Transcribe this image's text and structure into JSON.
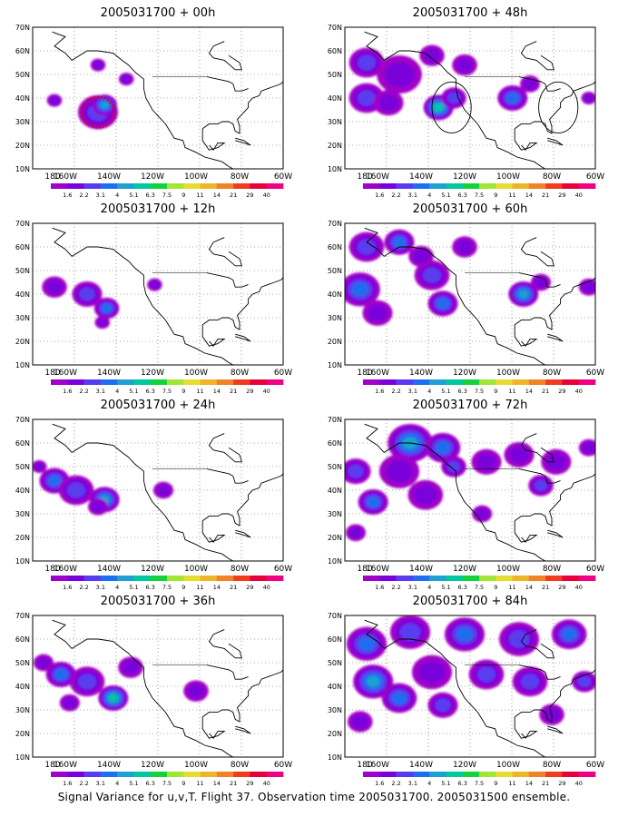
{
  "figure": {
    "caption": "Signal Variance for u,v,T. Flight 37. Observation time 2005031700. 2005031500 ensemble."
  },
  "axes": {
    "lat_ticks": [
      "70N",
      "60N",
      "50N",
      "40N",
      "30N",
      "20N",
      "10N"
    ],
    "lon_ticks": [
      "180",
      "160W",
      "140W",
      "120W",
      "100W",
      "80W",
      "60W"
    ],
    "lat_range": [
      10,
      70
    ],
    "lon_range": [
      -175,
      -60
    ]
  },
  "colorbar": {
    "labels": [
      "1.6",
      "2.2",
      "3.1",
      "4",
      "5.1",
      "6.3",
      "7.5",
      "9",
      "11",
      "14",
      "21",
      "29",
      "40"
    ],
    "colors": [
      "#a000c8",
      "#7a00dc",
      "#5a3cf0",
      "#1e6ef0",
      "#1ea0d2",
      "#00c8a0",
      "#14d23c",
      "#a0e632",
      "#e6dc32",
      "#f0b428",
      "#f08228",
      "#f03c1e",
      "#e6003c",
      "#f00082"
    ]
  },
  "panels": [
    {
      "title": "2005031700 + 00h",
      "blobs": [
        {
          "lon": -145,
          "lat": 34,
          "r": 8,
          "level": 2
        },
        {
          "lon": -142,
          "lat": 37,
          "r": 5,
          "level": 4
        },
        {
          "lon": -165,
          "lat": 39,
          "r": 3,
          "level": 1
        },
        {
          "lon": -145,
          "lat": 54,
          "r": 3,
          "level": 1
        },
        {
          "lon": -132,
          "lat": 48,
          "r": 3,
          "level": 1
        }
      ],
      "circles": [],
      "flight_box": {
        "lon": -145,
        "lat": 34,
        "r": 6
      }
    },
    {
      "title": "2005031700 + 12h",
      "blobs": [
        {
          "lon": -165,
          "lat": 43,
          "r": 5,
          "level": 1
        },
        {
          "lon": -150,
          "lat": 40,
          "r": 6,
          "level": 2
        },
        {
          "lon": -141,
          "lat": 34,
          "r": 5,
          "level": 3
        },
        {
          "lon": -143,
          "lat": 28,
          "r": 3,
          "level": 1
        },
        {
          "lon": -119,
          "lat": 44,
          "r": 3,
          "level": 1
        }
      ],
      "circles": []
    },
    {
      "title": "2005031700 + 24h",
      "blobs": [
        {
          "lon": -165,
          "lat": 44,
          "r": 6,
          "level": 3
        },
        {
          "lon": -155,
          "lat": 40,
          "r": 7,
          "level": 2
        },
        {
          "lon": -142,
          "lat": 36,
          "r": 6,
          "level": 4
        },
        {
          "lon": -145,
          "lat": 33,
          "r": 4,
          "level": 1
        },
        {
          "lon": -115,
          "lat": 40,
          "r": 4,
          "level": 1
        },
        {
          "lon": -172,
          "lat": 50,
          "r": 3,
          "level": 1
        }
      ],
      "circles": []
    },
    {
      "title": "2005031700 + 36h",
      "blobs": [
        {
          "lon": -170,
          "lat": 50,
          "r": 4,
          "level": 1
        },
        {
          "lon": -162,
          "lat": 45,
          "r": 6,
          "level": 3
        },
        {
          "lon": -150,
          "lat": 42,
          "r": 7,
          "level": 2
        },
        {
          "lon": -138,
          "lat": 35,
          "r": 6,
          "level": 5
        },
        {
          "lon": -130,
          "lat": 48,
          "r": 5,
          "level": 1
        },
        {
          "lon": -158,
          "lat": 33,
          "r": 4,
          "level": 1
        },
        {
          "lon": -100,
          "lat": 38,
          "r": 5,
          "level": 1
        }
      ],
      "circles": []
    },
    {
      "title": "2005031700 + 48h",
      "blobs": [
        {
          "lon": -165,
          "lat": 55,
          "r": 7,
          "level": 2
        },
        {
          "lon": -150,
          "lat": 50,
          "r": 9,
          "level": 1
        },
        {
          "lon": -165,
          "lat": 40,
          "r": 7,
          "level": 2
        },
        {
          "lon": -155,
          "lat": 38,
          "r": 6,
          "level": 1
        },
        {
          "lon": -132,
          "lat": 36,
          "r": 6,
          "level": 5
        },
        {
          "lon": -125,
          "lat": 40,
          "r": 5,
          "level": 2
        },
        {
          "lon": -120,
          "lat": 54,
          "r": 5,
          "level": 1
        },
        {
          "lon": -135,
          "lat": 58,
          "r": 5,
          "level": 1
        },
        {
          "lon": -98,
          "lat": 40,
          "r": 6,
          "level": 3
        },
        {
          "lon": -90,
          "lat": 46,
          "r": 4,
          "level": 1
        },
        {
          "lon": -63,
          "lat": 40,
          "r": 3,
          "level": 1
        }
      ],
      "circles": [
        {
          "lon": -126,
          "lat": 36,
          "r": 9
        },
        {
          "lon": -77,
          "lat": 36,
          "r": 9
        }
      ]
    },
    {
      "title": "2005031700 + 60h",
      "blobs": [
        {
          "lon": -165,
          "lat": 60,
          "r": 7,
          "level": 2
        },
        {
          "lon": -150,
          "lat": 62,
          "r": 6,
          "level": 3
        },
        {
          "lon": -168,
          "lat": 42,
          "r": 8,
          "level": 3
        },
        {
          "lon": -160,
          "lat": 32,
          "r": 6,
          "level": 1
        },
        {
          "lon": -135,
          "lat": 48,
          "r": 7,
          "level": 2
        },
        {
          "lon": -130,
          "lat": 36,
          "r": 6,
          "level": 3
        },
        {
          "lon": -140,
          "lat": 56,
          "r": 5,
          "level": 1
        },
        {
          "lon": -120,
          "lat": 60,
          "r": 5,
          "level": 1
        },
        {
          "lon": -93,
          "lat": 40,
          "r": 6,
          "level": 4
        },
        {
          "lon": -85,
          "lat": 45,
          "r": 4,
          "level": 1
        },
        {
          "lon": -63,
          "lat": 43,
          "r": 4,
          "level": 1
        }
      ],
      "circles": []
    },
    {
      "title": "2005031700 + 72h",
      "blobs": [
        {
          "lon": -170,
          "lat": 48,
          "r": 6,
          "level": 2
        },
        {
          "lon": -145,
          "lat": 60,
          "r": 9,
          "level": 4
        },
        {
          "lon": -130,
          "lat": 58,
          "r": 7,
          "level": 3
        },
        {
          "lon": -150,
          "lat": 48,
          "r": 8,
          "level": 1
        },
        {
          "lon": -125,
          "lat": 50,
          "r": 5,
          "level": 2
        },
        {
          "lon": -162,
          "lat": 35,
          "r": 6,
          "level": 3
        },
        {
          "lon": -170,
          "lat": 22,
          "r": 4,
          "level": 1
        },
        {
          "lon": -138,
          "lat": 38,
          "r": 7,
          "level": 1
        },
        {
          "lon": -110,
          "lat": 52,
          "r": 6,
          "level": 1
        },
        {
          "lon": -95,
          "lat": 55,
          "r": 6,
          "level": 1
        },
        {
          "lon": -78,
          "lat": 52,
          "r": 6,
          "level": 1
        },
        {
          "lon": -63,
          "lat": 58,
          "r": 4,
          "level": 1
        },
        {
          "lon": -85,
          "lat": 42,
          "r": 5,
          "level": 2
        },
        {
          "lon": -112,
          "lat": 30,
          "r": 4,
          "level": 1
        }
      ],
      "circles": []
    },
    {
      "title": "2005031700 + 84h",
      "blobs": [
        {
          "lon": -165,
          "lat": 58,
          "r": 8,
          "level": 3
        },
        {
          "lon": -145,
          "lat": 63,
          "r": 8,
          "level": 2
        },
        {
          "lon": -120,
          "lat": 62,
          "r": 8,
          "level": 3
        },
        {
          "lon": -95,
          "lat": 60,
          "r": 8,
          "level": 2
        },
        {
          "lon": -72,
          "lat": 62,
          "r": 7,
          "level": 3
        },
        {
          "lon": -162,
          "lat": 42,
          "r": 8,
          "level": 4
        },
        {
          "lon": -150,
          "lat": 35,
          "r": 7,
          "level": 3
        },
        {
          "lon": -135,
          "lat": 46,
          "r": 8,
          "level": 1
        },
        {
          "lon": -130,
          "lat": 32,
          "r": 6,
          "level": 2
        },
        {
          "lon": -110,
          "lat": 45,
          "r": 7,
          "level": 2
        },
        {
          "lon": -90,
          "lat": 42,
          "r": 7,
          "level": 2
        },
        {
          "lon": -65,
          "lat": 42,
          "r": 5,
          "level": 2
        },
        {
          "lon": -168,
          "lat": 25,
          "r": 5,
          "level": 1
        },
        {
          "lon": -80,
          "lat": 28,
          "r": 5,
          "level": 1
        }
      ],
      "circles": []
    }
  ]
}
